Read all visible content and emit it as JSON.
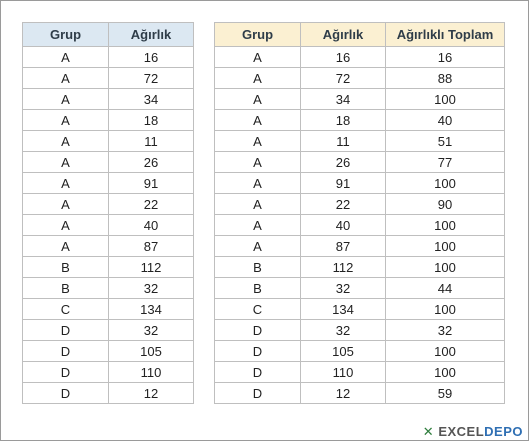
{
  "left_table": {
    "headers": [
      "Grup",
      "Ağırlık"
    ],
    "rows": [
      [
        "A",
        "16"
      ],
      [
        "A",
        "72"
      ],
      [
        "A",
        "34"
      ],
      [
        "A",
        "18"
      ],
      [
        "A",
        "11"
      ],
      [
        "A",
        "26"
      ],
      [
        "A",
        "91"
      ],
      [
        "A",
        "22"
      ],
      [
        "A",
        "40"
      ],
      [
        "A",
        "87"
      ],
      [
        "B",
        "112"
      ],
      [
        "B",
        "32"
      ],
      [
        "C",
        "134"
      ],
      [
        "D",
        "32"
      ],
      [
        "D",
        "105"
      ],
      [
        "D",
        "110"
      ],
      [
        "D",
        "12"
      ]
    ]
  },
  "right_table": {
    "headers": [
      "Grup",
      "Ağırlık",
      "Ağırlıklı Toplam"
    ],
    "rows": [
      [
        "A",
        "16",
        "16"
      ],
      [
        "A",
        "72",
        "88"
      ],
      [
        "A",
        "34",
        "100"
      ],
      [
        "A",
        "18",
        "40"
      ],
      [
        "A",
        "11",
        "51"
      ],
      [
        "A",
        "26",
        "77"
      ],
      [
        "A",
        "91",
        "100"
      ],
      [
        "A",
        "22",
        "90"
      ],
      [
        "A",
        "40",
        "100"
      ],
      [
        "A",
        "87",
        "100"
      ],
      [
        "B",
        "112",
        "100"
      ],
      [
        "B",
        "32",
        "44"
      ],
      [
        "C",
        "134",
        "100"
      ],
      [
        "D",
        "32",
        "32"
      ],
      [
        "D",
        "105",
        "100"
      ],
      [
        "D",
        "110",
        "100"
      ],
      [
        "D",
        "12",
        "59"
      ]
    ]
  },
  "watermark": {
    "part1": "EXCEL",
    "part2": "DEPO"
  }
}
